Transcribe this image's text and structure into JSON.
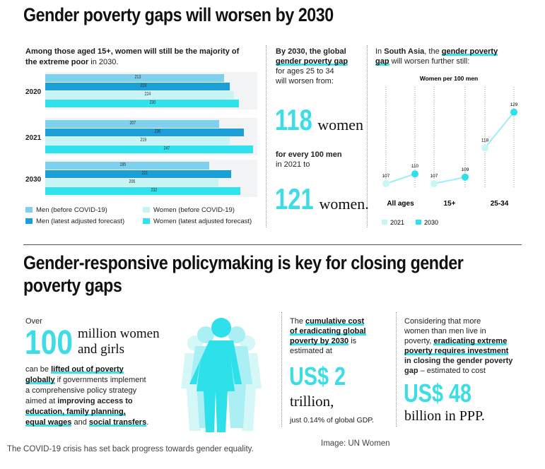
{
  "section1": {
    "title": "Gender poverty gaps will worsen by 2030",
    "intro_bold": "Among those aged 15+, women will still be the majority of the extreme poor",
    "intro_rest": " in 2030."
  },
  "chart_data": [
    {
      "type": "bar",
      "orientation": "horizontal",
      "categories": [
        "2020",
        "2021",
        "2030"
      ],
      "xlabel": "",
      "ylabel": "",
      "series": [
        {
          "name": "Men (before COVID-19)",
          "color": "#7fd0ee",
          "values": [
            213,
            207,
            195
          ]
        },
        {
          "name": "Men (latest adjusted forecast)",
          "color": "#1a9fd8",
          "values": [
            219,
            236,
            221
          ]
        },
        {
          "name": "Women (before COVID-19)",
          "color": "#c8f4f6",
          "values": [
            224,
            219,
            206
          ]
        },
        {
          "name": "Women (latest adjusted forecast)",
          "color": "#2fe3ee",
          "values": [
            230,
            247,
            232
          ]
        }
      ]
    },
    {
      "type": "line",
      "title": "Women per 100 men",
      "categories": [
        "All ages",
        "15+",
        "25-34"
      ],
      "series": [
        {
          "name": "2021",
          "color": "#c8f6f8",
          "values": [
            107,
            107,
            118
          ]
        },
        {
          "name": "2030",
          "color": "#2ee0ea",
          "values": [
            110,
            109,
            129
          ]
        }
      ]
    }
  ],
  "legend": {
    "men_before": "Men (before COVID-19)",
    "men_latest": "Men (latest adjusted forecast)",
    "women_before": "Women (before COVID-19)",
    "women_latest": "Women (latest adjusted forecast)"
  },
  "middle": {
    "line1_bold": "By 2030, the global",
    "line2_ul": "gender poverty gap",
    "line3": "for ages 25 to 34",
    "line4": "will worsen from:",
    "num1": "118",
    "num1_word": "women",
    "for_every_bold": "for every 100 men",
    "in_year": "in 2021 to",
    "num2": "121",
    "num2_word": "women."
  },
  "south_asia": {
    "prefix": "In ",
    "region_bold": "South Asia",
    "mid": ", the ",
    "gap_ul": "gender poverty",
    "gap_ul2": "gap",
    "rest": " will worsen further still:",
    "legend_2021": "2021",
    "legend_2030": "2030"
  },
  "section2": {
    "title": "Gender-responsive policymaking is key for closing gender poverty gaps",
    "over": "Over",
    "big_number": "100",
    "million_line1": "million women",
    "million_line2": "and girls",
    "t1": "can be ",
    "t1_bold": "lifted out of poverty",
    "t2_bold": "globally",
    "t2": " if governments implement",
    "t3": "a comprehensive policy strategy",
    "t4": "aimed at ",
    "t4_bold": "improving access to",
    "t5_ul": "education, family planning,",
    "t6_ul": "equal wages",
    "t6_and": " and ",
    "t6_ul2": "social transfers",
    "t6_end": "."
  },
  "cost": {
    "the": "The ",
    "l1_ul": "cumulative cost",
    "l2_ul": "of eradicating global",
    "l3_ul": "poverty by 2030",
    "l3_rest": " is",
    "l4": "estimated at",
    "amount": "US$ 2",
    "unit": "trillion,",
    "gdp": "just 0.14% of global GDP."
  },
  "investment": {
    "l1": "Considering that more",
    "l2": "women than men live in",
    "l3": "poverty, ",
    "l3_ul": "eradicating extreme",
    "l4_ul": "poverty requires investment",
    "l5_bold": "in closing the gender poverty",
    "l6_bold": "gap",
    "l6_rest": " – estimated to cost",
    "amount": "US$ 48",
    "unit": "billion in PPP."
  },
  "footer": {
    "caption": "The COVID-19 crisis has set back progress towards gender equality.",
    "credit": "Image: UN Women"
  }
}
